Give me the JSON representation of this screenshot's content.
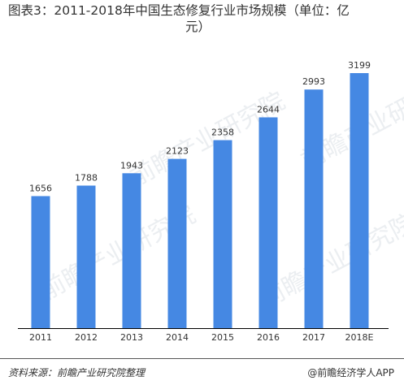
{
  "title": "图表3：2011-2018年中国生态修复行业市场规模（单位：亿元）",
  "title_line1": "图表3：2011-2018年中国生态修复行业市场规模（单位：亿",
  "title_line2": "元）",
  "watermark": "前瞻产业研究院",
  "colors": {
    "bar": "#4588e3",
    "axis": "#000000",
    "text": "#333333"
  },
  "chart_data": {
    "type": "bar",
    "title": "图表3：2011-2018年中国生态修复行业市场规模（单位：亿元）",
    "categories": [
      "2011",
      "2012",
      "2013",
      "2014",
      "2015",
      "2016",
      "2017",
      "2018E"
    ],
    "values": [
      1656,
      1788,
      1943,
      2123,
      2358,
      2644,
      2993,
      3199
    ],
    "xlabel": "",
    "ylabel": "",
    "ylim": [
      0,
      3199
    ],
    "grid": false,
    "legend": "none"
  },
  "footer": {
    "source": "资料来源：前瞻产业研究院整理",
    "brand": "@前瞻经济学人APP"
  }
}
